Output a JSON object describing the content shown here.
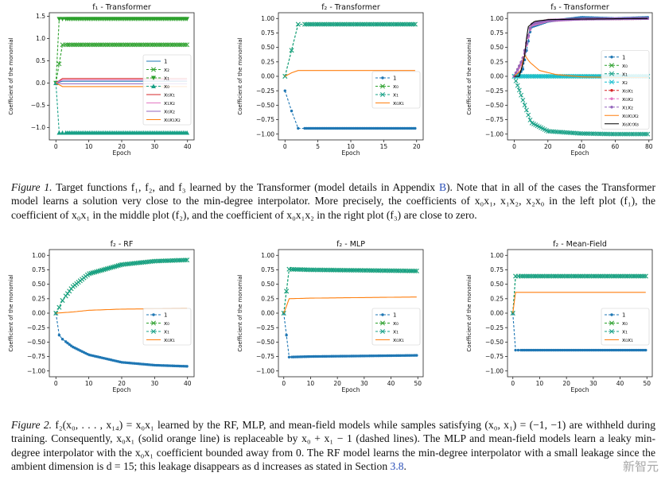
{
  "chart_data": [
    {
      "type": "line",
      "title": "f₁ - Transformer",
      "xlabel": "Epoch",
      "ylabel": "Coefficient of the monomial",
      "xlim": [
        -2,
        42
      ],
      "ylim": [
        -1.28,
        1.58
      ],
      "xticks": [
        0,
        10,
        20,
        30,
        40
      ],
      "yticks": [
        -1.0,
        -0.5,
        0.0,
        0.5,
        1.0,
        1.5
      ],
      "ytick_labels": [
        "−1.0",
        "−0.5",
        "0.0",
        "0.5",
        "1.0",
        "1.5"
      ],
      "legend_position": "right",
      "series": [
        {
          "name": "1",
          "style": "solid",
          "color": "#1f77b4",
          "marker": "",
          "x": [
            0,
            2,
            40
          ],
          "y": [
            0.0,
            0.04,
            0.04
          ]
        },
        {
          "name": "x₂",
          "style": "dashed",
          "color": "#2ca02c",
          "marker": "x",
          "x": [
            0,
            2,
            40
          ],
          "y": [
            0.0,
            0.86,
            0.86
          ]
        },
        {
          "name": "x₁",
          "style": "dashed",
          "color": "#2ca02c",
          "marker": "v",
          "x": [
            0,
            1,
            40
          ],
          "y": [
            0.0,
            1.44,
            1.44
          ]
        },
        {
          "name": "x₀",
          "style": "dashed",
          "color": "#17a086",
          "marker": "^",
          "x": [
            0,
            1,
            40
          ],
          "y": [
            0.0,
            -1.12,
            -1.12
          ]
        },
        {
          "name": "x₀x₁",
          "style": "solid",
          "color": "#d62728",
          "marker": "",
          "x": [
            0,
            2,
            40
          ],
          "y": [
            0.0,
            0.1,
            0.1
          ]
        },
        {
          "name": "x₁x₂",
          "style": "solid",
          "color": "#e377c2",
          "marker": "",
          "x": [
            0,
            2,
            40
          ],
          "y": [
            0.0,
            0.07,
            0.07
          ]
        },
        {
          "name": "x₀x₂",
          "style": "solid",
          "color": "#9467bd",
          "marker": "",
          "x": [
            0,
            2,
            40
          ],
          "y": [
            0.0,
            -0.02,
            -0.02
          ]
        },
        {
          "name": "x₀x₁x₂",
          "style": "solid",
          "color": "#ff7f0e",
          "marker": "",
          "x": [
            0,
            2,
            40
          ],
          "y": [
            0.0,
            -0.08,
            -0.08
          ]
        }
      ]
    },
    {
      "type": "line",
      "title": "f₂ - Transformer",
      "xlabel": "Epoch",
      "ylabel": "Coefficient of the monomial",
      "xlim": [
        -1,
        21
      ],
      "ylim": [
        -1.1,
        1.1
      ],
      "xticks": [
        0,
        5,
        10,
        15,
        20
      ],
      "yticks": [
        -1.0,
        -0.75,
        -0.5,
        -0.25,
        0.0,
        0.25,
        0.5,
        0.75,
        1.0
      ],
      "ytick_labels": [
        "−1.00",
        "−0.75",
        "−0.50",
        "−0.25",
        "0.00",
        "0.25",
        "0.50",
        "0.75",
        "1.00"
      ],
      "legend_position": "right",
      "series": [
        {
          "name": "1",
          "style": "dashed",
          "color": "#1f77b4",
          "marker": "o",
          "x": [
            0,
            1,
            2,
            20
          ],
          "y": [
            -0.25,
            -0.6,
            -0.9,
            -0.9
          ]
        },
        {
          "name": "x₀",
          "style": "dashed",
          "color": "#2ca02c",
          "marker": "x",
          "x": [
            0,
            1,
            2,
            20
          ],
          "y": [
            0.0,
            0.45,
            0.9,
            0.9
          ]
        },
        {
          "name": "x₁",
          "style": "dashed",
          "color": "#17a086",
          "marker": "x",
          "x": [
            0,
            1,
            2,
            20
          ],
          "y": [
            0.0,
            0.45,
            0.9,
            0.9
          ]
        },
        {
          "name": "x₀x₁",
          "style": "solid",
          "color": "#ff7f0e",
          "marker": "",
          "x": [
            0,
            1,
            2,
            20
          ],
          "y": [
            0.0,
            0.06,
            0.1,
            0.1
          ]
        }
      ]
    },
    {
      "type": "line",
      "title": "f₃ - Transformer",
      "xlabel": "Epoch",
      "ylabel": "Coefficient of the monomial",
      "xlim": [
        -4,
        82
      ],
      "ylim": [
        -1.1,
        1.1
      ],
      "xticks": [
        0,
        20,
        40,
        60,
        80
      ],
      "yticks": [
        -1.0,
        -0.75,
        -0.5,
        -0.25,
        0.0,
        0.25,
        0.5,
        0.75,
        1.0
      ],
      "ytick_labels": [
        "−1.00",
        "−0.75",
        "−0.50",
        "−0.25",
        "0.00",
        "0.25",
        "0.50",
        "0.75",
        "1.00"
      ],
      "legend_position": "right",
      "series": [
        {
          "name": "1",
          "style": "dashed",
          "color": "#1f77b4",
          "marker": "o",
          "x": [
            0,
            5,
            10,
            20,
            40,
            60,
            80
          ],
          "y": [
            0.0,
            0.1,
            0.85,
            0.95,
            1.02,
            1.0,
            1.02
          ]
        },
        {
          "name": "x₀",
          "style": "dashed",
          "color": "#2ca02c",
          "marker": "x",
          "x": [
            0,
            80
          ],
          "y": [
            0.0,
            0.0
          ]
        },
        {
          "name": "x₁",
          "style": "dashed",
          "color": "#17a086",
          "marker": "x",
          "x": [
            0,
            5,
            10,
            20,
            40,
            60,
            80
          ],
          "y": [
            0.0,
            -0.4,
            -0.8,
            -0.95,
            -0.99,
            -1.0,
            -1.0
          ]
        },
        {
          "name": "x₂",
          "style": "dashed",
          "color": "#17becf",
          "marker": "x",
          "x": [
            0,
            80
          ],
          "y": [
            0.0,
            0.0
          ]
        },
        {
          "name": "x₀x₁",
          "style": "dashed",
          "color": "#d62728",
          "marker": "o",
          "x": [
            0,
            5,
            10,
            20,
            40,
            80
          ],
          "y": [
            0.0,
            0.3,
            0.9,
            0.97,
            0.99,
            1.0
          ]
        },
        {
          "name": "x₀x₂",
          "style": "dashed",
          "color": "#e377c2",
          "marker": "o",
          "x": [
            0,
            5,
            10,
            20,
            40,
            80
          ],
          "y": [
            0.0,
            0.25,
            0.88,
            0.96,
            0.99,
            1.0
          ]
        },
        {
          "name": "x₁x₂",
          "style": "dashed",
          "color": "#9467bd",
          "marker": "o",
          "x": [
            0,
            5,
            10,
            20,
            40,
            80
          ],
          "y": [
            0.0,
            0.3,
            0.9,
            0.97,
            0.99,
            1.0
          ]
        },
        {
          "name": "x₀x₁x₂",
          "style": "solid",
          "color": "#ff7f0e",
          "marker": "",
          "x": [
            0,
            4,
            6,
            9,
            15,
            25,
            40,
            60,
            80
          ],
          "y": [
            0.0,
            0.1,
            0.38,
            0.25,
            0.1,
            0.03,
            -0.01,
            -0.02,
            -0.02
          ]
        },
        {
          "name": "x₆x₇x₈",
          "style": "solid",
          "color": "#000000",
          "marker": "",
          "x": [
            0,
            3,
            6,
            8,
            12,
            20,
            40,
            80
          ],
          "y": [
            0.0,
            0.0,
            0.3,
            0.85,
            0.95,
            0.98,
            0.99,
            1.0
          ]
        }
      ]
    },
    {
      "type": "line",
      "title": "f₂ - RF",
      "xlabel": "Epoch",
      "ylabel": "Coefficient of the monomial",
      "xlim": [
        -2,
        42
      ],
      "ylim": [
        -1.1,
        1.1
      ],
      "xticks": [
        0,
        10,
        20,
        30,
        40
      ],
      "yticks": [
        -1.0,
        -0.75,
        -0.5,
        -0.25,
        0.0,
        0.25,
        0.5,
        0.75,
        1.0
      ],
      "ytick_labels": [
        "−1.00",
        "−0.75",
        "−0.50",
        "−0.25",
        "0.00",
        "0.25",
        "0.50",
        "0.75",
        "1.00"
      ],
      "legend_position": "right",
      "series": [
        {
          "name": "1",
          "style": "dashed",
          "color": "#1f77b4",
          "marker": "o",
          "x": [
            0,
            1,
            2,
            5,
            10,
            20,
            30,
            40
          ],
          "y": [
            0.0,
            -0.38,
            -0.45,
            -0.58,
            -0.72,
            -0.85,
            -0.9,
            -0.92
          ]
        },
        {
          "name": "x₀",
          "style": "dashed",
          "color": "#2ca02c",
          "marker": "x",
          "x": [
            0,
            1,
            2,
            5,
            10,
            20,
            30,
            40
          ],
          "y": [
            0.0,
            0.1,
            0.22,
            0.45,
            0.68,
            0.84,
            0.9,
            0.92
          ]
        },
        {
          "name": "x₁",
          "style": "dashed",
          "color": "#17a086",
          "marker": "x",
          "x": [
            0,
            1,
            2,
            5,
            10,
            20,
            30,
            40
          ],
          "y": [
            0.0,
            0.1,
            0.22,
            0.45,
            0.68,
            0.84,
            0.9,
            0.92
          ]
        },
        {
          "name": "x₀x₁",
          "style": "solid",
          "color": "#ff7f0e",
          "marker": "",
          "x": [
            0,
            5,
            10,
            20,
            30,
            40
          ],
          "y": [
            0.0,
            0.02,
            0.05,
            0.07,
            0.075,
            0.08
          ]
        }
      ]
    },
    {
      "type": "line",
      "title": "f₂ - MLP",
      "xlabel": "Epoch",
      "ylabel": "Coefficient of the monomial",
      "xlim": [
        -2,
        52
      ],
      "ylim": [
        -1.1,
        1.1
      ],
      "xticks": [
        0,
        10,
        20,
        30,
        40,
        50
      ],
      "yticks": [
        -1.0,
        -0.75,
        -0.5,
        -0.25,
        0.0,
        0.25,
        0.5,
        0.75,
        1.0
      ],
      "ytick_labels": [
        "−1.00",
        "−0.75",
        "−0.50",
        "−0.25",
        "0.00",
        "0.25",
        "0.50",
        "0.75",
        "1.00"
      ],
      "legend_position": "right",
      "series": [
        {
          "name": "1",
          "style": "dashed",
          "color": "#1f77b4",
          "marker": "o",
          "x": [
            0,
            2,
            10,
            50
          ],
          "y": [
            0.0,
            -0.76,
            -0.75,
            -0.73
          ]
        },
        {
          "name": "x₀",
          "style": "dashed",
          "color": "#2ca02c",
          "marker": "x",
          "x": [
            0,
            2,
            10,
            50
          ],
          "y": [
            0.0,
            0.76,
            0.75,
            0.73
          ]
        },
        {
          "name": "x₁",
          "style": "dashed",
          "color": "#17a086",
          "marker": "x",
          "x": [
            0,
            2,
            10,
            50
          ],
          "y": [
            0.0,
            0.76,
            0.75,
            0.73
          ]
        },
        {
          "name": "x₀x₁",
          "style": "solid",
          "color": "#ff7f0e",
          "marker": "",
          "x": [
            0,
            1,
            2,
            10,
            50
          ],
          "y": [
            0.0,
            0.12,
            0.25,
            0.26,
            0.28
          ]
        }
      ]
    },
    {
      "type": "line",
      "title": "f₂ - Mean-Field",
      "xlabel": "Epoch",
      "ylabel": "Coefficient of the monomial",
      "xlim": [
        -2,
        52
      ],
      "ylim": [
        -1.1,
        1.1
      ],
      "xticks": [
        0,
        10,
        20,
        30,
        40,
        50
      ],
      "yticks": [
        -1.0,
        -0.75,
        -0.5,
        -0.25,
        0.0,
        0.25,
        0.5,
        0.75,
        1.0
      ],
      "ytick_labels": [
        "−1.00",
        "−0.75",
        "−0.50",
        "−0.25",
        "0.00",
        "0.25",
        "0.50",
        "0.75",
        "1.00"
      ],
      "legend_position": "right",
      "series": [
        {
          "name": "1",
          "style": "dashed",
          "color": "#1f77b4",
          "marker": "o",
          "x": [
            0,
            1,
            50
          ],
          "y": [
            0.0,
            -0.64,
            -0.64
          ]
        },
        {
          "name": "x₀",
          "style": "dashed",
          "color": "#2ca02c",
          "marker": "x",
          "x": [
            0,
            1,
            50
          ],
          "y": [
            0.0,
            0.64,
            0.64
          ]
        },
        {
          "name": "x₁",
          "style": "dashed",
          "color": "#17a086",
          "marker": "x",
          "x": [
            0,
            1,
            50
          ],
          "y": [
            0.0,
            0.64,
            0.64
          ]
        },
        {
          "name": "x₀x₁",
          "style": "solid",
          "color": "#ff7f0e",
          "marker": "",
          "x": [
            0,
            1,
            50
          ],
          "y": [
            0.0,
            0.36,
            0.36
          ]
        }
      ]
    }
  ],
  "figure1": {
    "label": "Figure 1.",
    "text_a": " Target functions f₁, f₂, and f₃ learned by the Transformer (model details in Appendix ",
    "link": "B",
    "text_b": "). Note that in all of the cases the Transformer model learns a solution very close to the min-degree interpolator. More precisely, the coefficients of x₀x₁, x₁x₂, x₂x₀ in the left plot (f₁), the coefficient of x₀x₁ in the middle plot (f₂), and the coefficient of x₀x₁x₂ in the right plot (f₃) are close to zero."
  },
  "figure2": {
    "label": "Figure 2.",
    "text_a": " f₂(x₀, . . . , x₁₄) = x₀x₁ learned by the RF, MLP, and mean-field models while samples satisfying (x₀, x₁) = (−1, −1) are withheld during training. Consequently, x₀x₁ (solid orange line) is replaceable by x₀ + x₁ − 1 (dashed lines). The MLP and mean-field models learn a leaky min-degree interpolator with the x₀x₁ coefficient bounded away from 0. The RF model learns the min-degree interpolator with a small leakage since the ambient dimension is d = 15; this leakage disappears as d increases as stated in Section ",
    "link": "3.8",
    "text_b": "."
  },
  "watermark": "新智元"
}
